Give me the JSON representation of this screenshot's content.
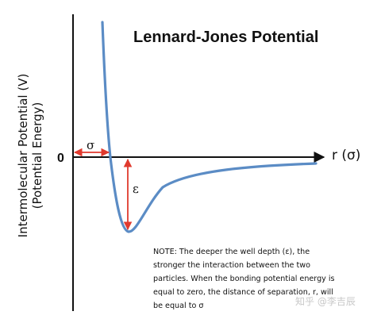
{
  "title": "Lennard-Jones Potential",
  "y_axis": {
    "line1": "Intermolecular Potential  (V)",
    "line2": "(Potential Energy)"
  },
  "zero_label": "0",
  "x_axis_label": "r (σ)",
  "sigma_label": "σ",
  "epsilon_label": "ε",
  "note": "NOTE: The deeper the well depth (ε), the stronger the interaction between the two particles.  When the bonding potential energy is equal to zero, the distance of separation, r, will be equal to σ",
  "watermark": "知乎 @李吉辰",
  "colors": {
    "curve": "#5b8cc5",
    "arrows": "#e03a2e",
    "axes": "#111111"
  }
}
